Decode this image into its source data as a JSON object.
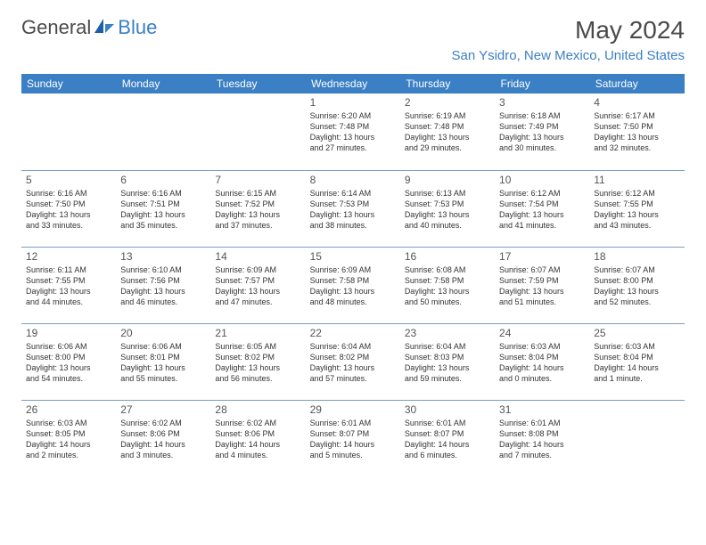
{
  "brand": {
    "general": "General",
    "blue": "Blue"
  },
  "header": {
    "month_title": "May 2024",
    "location": "San Ysidro, New Mexico, United States"
  },
  "colors": {
    "accent": "#3b7fc4",
    "header_text": "#4a4a4a",
    "cell_text": "#333333",
    "rule": "#7a9cc6",
    "bg": "#ffffff"
  },
  "daynames": [
    "Sunday",
    "Monday",
    "Tuesday",
    "Wednesday",
    "Thursday",
    "Friday",
    "Saturday"
  ],
  "weeks": [
    [
      null,
      null,
      null,
      {
        "n": "1",
        "sr": "Sunrise: 6:20 AM",
        "ss": "Sunset: 7:48 PM",
        "d1": "Daylight: 13 hours",
        "d2": "and 27 minutes."
      },
      {
        "n": "2",
        "sr": "Sunrise: 6:19 AM",
        "ss": "Sunset: 7:48 PM",
        "d1": "Daylight: 13 hours",
        "d2": "and 29 minutes."
      },
      {
        "n": "3",
        "sr": "Sunrise: 6:18 AM",
        "ss": "Sunset: 7:49 PM",
        "d1": "Daylight: 13 hours",
        "d2": "and 30 minutes."
      },
      {
        "n": "4",
        "sr": "Sunrise: 6:17 AM",
        "ss": "Sunset: 7:50 PM",
        "d1": "Daylight: 13 hours",
        "d2": "and 32 minutes."
      }
    ],
    [
      {
        "n": "5",
        "sr": "Sunrise: 6:16 AM",
        "ss": "Sunset: 7:50 PM",
        "d1": "Daylight: 13 hours",
        "d2": "and 33 minutes."
      },
      {
        "n": "6",
        "sr": "Sunrise: 6:16 AM",
        "ss": "Sunset: 7:51 PM",
        "d1": "Daylight: 13 hours",
        "d2": "and 35 minutes."
      },
      {
        "n": "7",
        "sr": "Sunrise: 6:15 AM",
        "ss": "Sunset: 7:52 PM",
        "d1": "Daylight: 13 hours",
        "d2": "and 37 minutes."
      },
      {
        "n": "8",
        "sr": "Sunrise: 6:14 AM",
        "ss": "Sunset: 7:53 PM",
        "d1": "Daylight: 13 hours",
        "d2": "and 38 minutes."
      },
      {
        "n": "9",
        "sr": "Sunrise: 6:13 AM",
        "ss": "Sunset: 7:53 PM",
        "d1": "Daylight: 13 hours",
        "d2": "and 40 minutes."
      },
      {
        "n": "10",
        "sr": "Sunrise: 6:12 AM",
        "ss": "Sunset: 7:54 PM",
        "d1": "Daylight: 13 hours",
        "d2": "and 41 minutes."
      },
      {
        "n": "11",
        "sr": "Sunrise: 6:12 AM",
        "ss": "Sunset: 7:55 PM",
        "d1": "Daylight: 13 hours",
        "d2": "and 43 minutes."
      }
    ],
    [
      {
        "n": "12",
        "sr": "Sunrise: 6:11 AM",
        "ss": "Sunset: 7:55 PM",
        "d1": "Daylight: 13 hours",
        "d2": "and 44 minutes."
      },
      {
        "n": "13",
        "sr": "Sunrise: 6:10 AM",
        "ss": "Sunset: 7:56 PM",
        "d1": "Daylight: 13 hours",
        "d2": "and 46 minutes."
      },
      {
        "n": "14",
        "sr": "Sunrise: 6:09 AM",
        "ss": "Sunset: 7:57 PM",
        "d1": "Daylight: 13 hours",
        "d2": "and 47 minutes."
      },
      {
        "n": "15",
        "sr": "Sunrise: 6:09 AM",
        "ss": "Sunset: 7:58 PM",
        "d1": "Daylight: 13 hours",
        "d2": "and 48 minutes."
      },
      {
        "n": "16",
        "sr": "Sunrise: 6:08 AM",
        "ss": "Sunset: 7:58 PM",
        "d1": "Daylight: 13 hours",
        "d2": "and 50 minutes."
      },
      {
        "n": "17",
        "sr": "Sunrise: 6:07 AM",
        "ss": "Sunset: 7:59 PM",
        "d1": "Daylight: 13 hours",
        "d2": "and 51 minutes."
      },
      {
        "n": "18",
        "sr": "Sunrise: 6:07 AM",
        "ss": "Sunset: 8:00 PM",
        "d1": "Daylight: 13 hours",
        "d2": "and 52 minutes."
      }
    ],
    [
      {
        "n": "19",
        "sr": "Sunrise: 6:06 AM",
        "ss": "Sunset: 8:00 PM",
        "d1": "Daylight: 13 hours",
        "d2": "and 54 minutes."
      },
      {
        "n": "20",
        "sr": "Sunrise: 6:06 AM",
        "ss": "Sunset: 8:01 PM",
        "d1": "Daylight: 13 hours",
        "d2": "and 55 minutes."
      },
      {
        "n": "21",
        "sr": "Sunrise: 6:05 AM",
        "ss": "Sunset: 8:02 PM",
        "d1": "Daylight: 13 hours",
        "d2": "and 56 minutes."
      },
      {
        "n": "22",
        "sr": "Sunrise: 6:04 AM",
        "ss": "Sunset: 8:02 PM",
        "d1": "Daylight: 13 hours",
        "d2": "and 57 minutes."
      },
      {
        "n": "23",
        "sr": "Sunrise: 6:04 AM",
        "ss": "Sunset: 8:03 PM",
        "d1": "Daylight: 13 hours",
        "d2": "and 59 minutes."
      },
      {
        "n": "24",
        "sr": "Sunrise: 6:03 AM",
        "ss": "Sunset: 8:04 PM",
        "d1": "Daylight: 14 hours",
        "d2": "and 0 minutes."
      },
      {
        "n": "25",
        "sr": "Sunrise: 6:03 AM",
        "ss": "Sunset: 8:04 PM",
        "d1": "Daylight: 14 hours",
        "d2": "and 1 minute."
      }
    ],
    [
      {
        "n": "26",
        "sr": "Sunrise: 6:03 AM",
        "ss": "Sunset: 8:05 PM",
        "d1": "Daylight: 14 hours",
        "d2": "and 2 minutes."
      },
      {
        "n": "27",
        "sr": "Sunrise: 6:02 AM",
        "ss": "Sunset: 8:06 PM",
        "d1": "Daylight: 14 hours",
        "d2": "and 3 minutes."
      },
      {
        "n": "28",
        "sr": "Sunrise: 6:02 AM",
        "ss": "Sunset: 8:06 PM",
        "d1": "Daylight: 14 hours",
        "d2": "and 4 minutes."
      },
      {
        "n": "29",
        "sr": "Sunrise: 6:01 AM",
        "ss": "Sunset: 8:07 PM",
        "d1": "Daylight: 14 hours",
        "d2": "and 5 minutes."
      },
      {
        "n": "30",
        "sr": "Sunrise: 6:01 AM",
        "ss": "Sunset: 8:07 PM",
        "d1": "Daylight: 14 hours",
        "d2": "and 6 minutes."
      },
      {
        "n": "31",
        "sr": "Sunrise: 6:01 AM",
        "ss": "Sunset: 8:08 PM",
        "d1": "Daylight: 14 hours",
        "d2": "and 7 minutes."
      },
      null
    ]
  ]
}
